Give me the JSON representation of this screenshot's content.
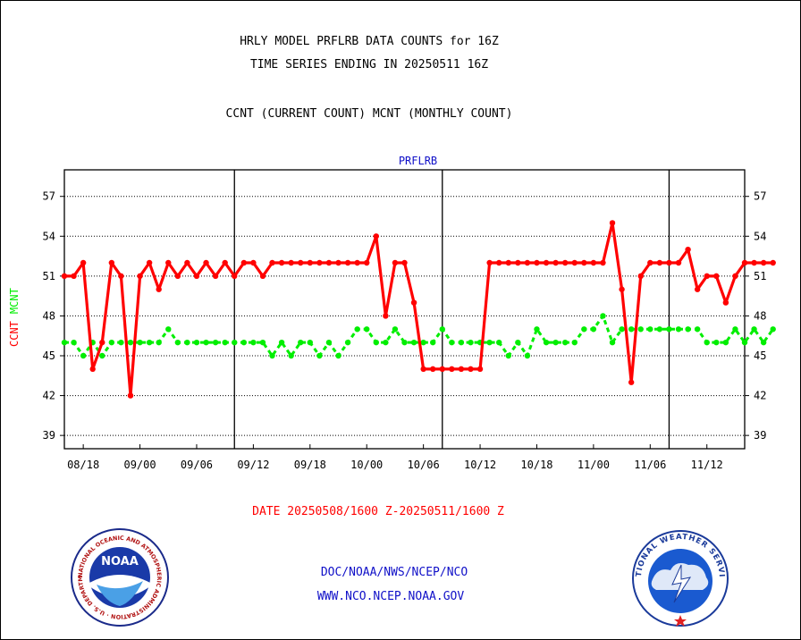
{
  "header": {
    "title_line1": "HRLY MODEL PRFLRB DATA COUNTS for 16Z",
    "title_line2": "TIME SERIES ENDING IN 20250511 16Z",
    "title_line3": "CCNT (CURRENT COUNT) MCNT (MONTHLY COUNT)"
  },
  "footer": {
    "date_range": "DATE 20250508/1600 Z-20250511/1600 Z",
    "org_path": "DOC/NOAA/NWS/NCEP/NCO",
    "website": "WWW.NCO.NCEP.NOAA.GOV"
  },
  "logos": {
    "noaa_text": "NOAA",
    "noaa_ring": "NATIONAL OCEANIC AND ATMOSPHERIC ADMINISTRATION · U.S. DEPARTMENT OF COMMERCE ·",
    "nws_ring": "NATIONAL WEATHER SERVICE"
  },
  "colors": {
    "ccnt": "#ff0000",
    "mcnt": "#00ee00",
    "title": "#000000",
    "date_text": "#ff0000",
    "link_text": "#1010c8",
    "dataset_label": "#1010c8"
  },
  "chart_data": {
    "type": "line",
    "dataset_label": "PRFLRB",
    "ylabel_ccnt": "CCNT",
    "ylabel_mcnt": "MCNT",
    "ylim": [
      38,
      59
    ],
    "yticks": [
      39,
      42,
      45,
      48,
      51,
      54,
      57
    ],
    "xlim": [
      -2,
      70
    ],
    "xticks": [
      {
        "x": 0,
        "label": "08/18"
      },
      {
        "x": 6,
        "label": "09/00"
      },
      {
        "x": 12,
        "label": "09/06"
      },
      {
        "x": 18,
        "label": "09/12"
      },
      {
        "x": 24,
        "label": "09/18"
      },
      {
        "x": 30,
        "label": "10/00"
      },
      {
        "x": 36,
        "label": "10/06"
      },
      {
        "x": 42,
        "label": "10/12"
      },
      {
        "x": 48,
        "label": "10/18"
      },
      {
        "x": 54,
        "label": "11/00"
      },
      {
        "x": 60,
        "label": "11/06"
      },
      {
        "x": 66,
        "label": "11/12"
      }
    ],
    "day_dividers": [
      16,
      38,
      62
    ],
    "grid": true,
    "x_start_hour": -2,
    "series": [
      {
        "name": "CCNT",
        "values": [
          51,
          51,
          52,
          44,
          46,
          52,
          51,
          42,
          51,
          52,
          50,
          52,
          51,
          52,
          51,
          52,
          51,
          52,
          51,
          52,
          52,
          51,
          52,
          52,
          52,
          52,
          52,
          52,
          52,
          52,
          52,
          52,
          52,
          54,
          48,
          52,
          52,
          49,
          44,
          44,
          44,
          44,
          44,
          44,
          44,
          52,
          52,
          52,
          52,
          52,
          52,
          52,
          52,
          52,
          52,
          52,
          52,
          52,
          55,
          50,
          43,
          51,
          52,
          52,
          52,
          52,
          53,
          50,
          51,
          51,
          49,
          51,
          52,
          52,
          52,
          52
        ]
      },
      {
        "name": "MCNT",
        "values": [
          46,
          46,
          45,
          46,
          45,
          46,
          46,
          46,
          46,
          46,
          46,
          47,
          46,
          46,
          46,
          46,
          46,
          46,
          46,
          46,
          46,
          46,
          45,
          46,
          45,
          46,
          46,
          45,
          46,
          45,
          46,
          47,
          47,
          46,
          46,
          47,
          46,
          46,
          46,
          46,
          47,
          46,
          46,
          46,
          46,
          46,
          46,
          45,
          46,
          45,
          47,
          46,
          46,
          46,
          46,
          47,
          47,
          48,
          46,
          47,
          47,
          47,
          47,
          47,
          47,
          47,
          47,
          47,
          46,
          46,
          46,
          47,
          46,
          47,
          46,
          47
        ]
      }
    ]
  }
}
